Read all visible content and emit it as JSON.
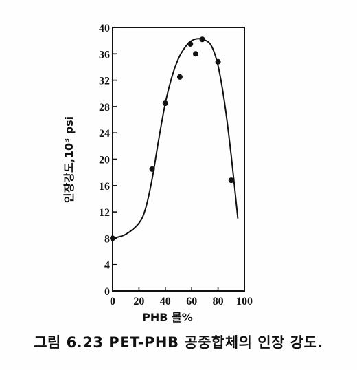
{
  "chart_data": {
    "type": "scatter",
    "title": "",
    "caption": "그림 6.23  PET-PHB 공중합체의 인장 강도.",
    "xlabel": "PHB 몰%",
    "ylabel": "인장강도,10³ psi",
    "xlim": [
      0,
      100
    ],
    "ylim": [
      0,
      40
    ],
    "x_ticks": [
      "0",
      "20",
      "40",
      "60",
      "80",
      "100"
    ],
    "y_ticks": [
      "0",
      "4",
      "8",
      "12",
      "16",
      "20",
      "24",
      "28",
      "32",
      "36",
      "40"
    ],
    "grid": false,
    "legend": "none",
    "series": [
      {
        "kind": "points",
        "x": [
          0,
          30,
          40,
          51,
          59,
          63,
          68,
          80,
          90
        ],
        "y": [
          8.0,
          18.5,
          28.5,
          32.5,
          37.5,
          36.0,
          38.2,
          34.8,
          16.8
        ]
      },
      {
        "kind": "curve",
        "x": [
          0,
          10,
          20,
          25,
          30,
          35,
          40,
          45,
          50,
          55,
          60,
          65,
          70,
          75,
          80,
          85,
          90,
          95
        ],
        "y": [
          8.0,
          8.6,
          10.3,
          12.5,
          17.0,
          23.0,
          28.5,
          32.5,
          35.3,
          37.0,
          38.0,
          38.3,
          38.1,
          37.2,
          34.2,
          28.5,
          20.5,
          11.0
        ]
      }
    ],
    "colors": {
      "ink": "#111111",
      "background": "#fefefe"
    }
  }
}
